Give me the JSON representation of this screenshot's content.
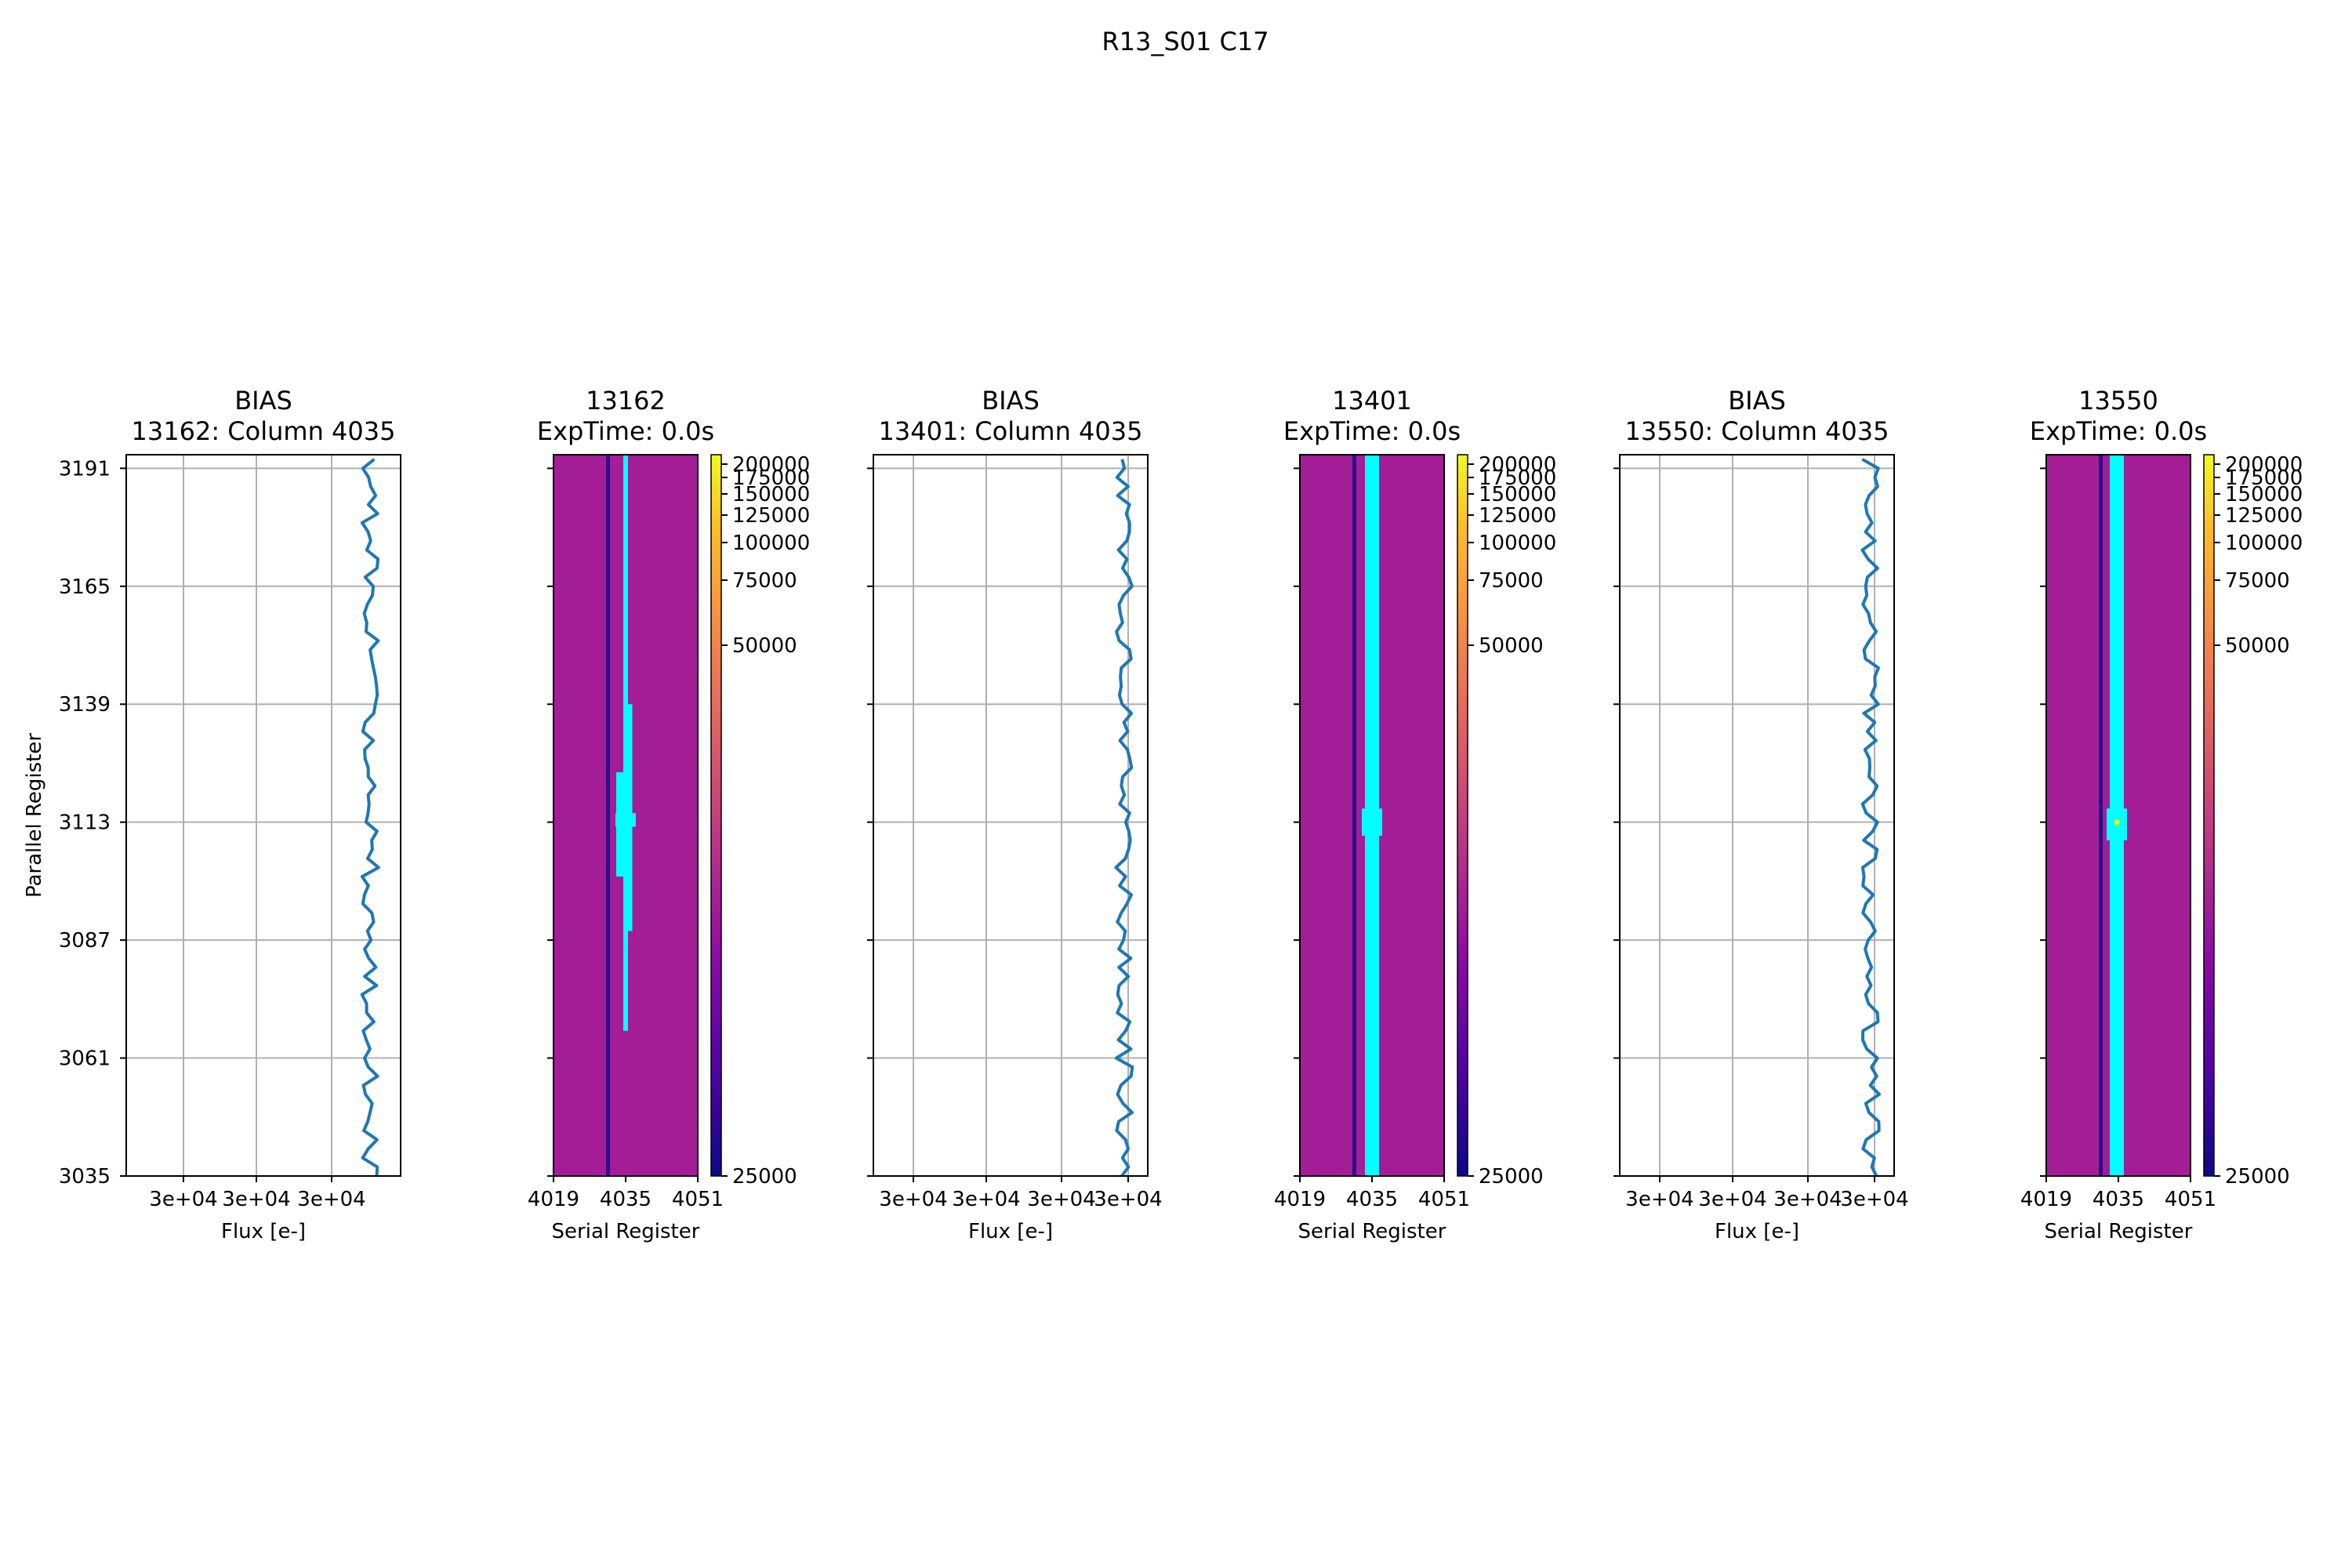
{
  "figure": {
    "suptitle": "R13_S01 C17"
  },
  "style": {
    "line_color": "#1f77b4",
    "grid_color": "#b0b0b0",
    "image_bg": "#a31e96",
    "dark_column": "#2a0f88",
    "bright_column": "#00ffff",
    "hot_pixel": "#ffff00"
  },
  "colorbar": {
    "ticks": [
      200000,
      175000,
      150000,
      125000,
      100000,
      75000,
      50000,
      25000
    ],
    "tick_labels": [
      "200000",
      "175000",
      "150000",
      "125000",
      "100000",
      "75000",
      "50000",
      "25000"
    ],
    "range": [
      25000,
      200000
    ]
  },
  "chart_data": [
    {
      "type": "line",
      "title": "BIAS\n13162: Column 4035",
      "xlabel": "Flux [e-]",
      "ylabel": "Parallel Register",
      "x_tick_labels": [
        "3e+04",
        "3e+04",
        "3e+04"
      ],
      "y_tick_labels": [
        "3191",
        "3165",
        "3139",
        "3113",
        "3087",
        "3061",
        "3035"
      ],
      "ylim": [
        3035,
        3194
      ],
      "grid": true,
      "flux_mean": 30252,
      "flux_amplitude": 3
    },
    {
      "type": "heatmap",
      "title": "13162\nExpTime: 0.0s",
      "xlabel": "Serial Register",
      "x_tick_labels": [
        "4019",
        "4035",
        "4051"
      ],
      "xlim": [
        4019,
        4051
      ],
      "ylim": [
        3035,
        3194
      ],
      "background_value": 60000,
      "features": [
        {
          "kind": "dark-column",
          "column": 4031,
          "y_range": [
            3035,
            3194
          ]
        },
        {
          "kind": "bright-column",
          "column": 4035,
          "y_range": [
            3067,
            3194
          ]
        },
        {
          "kind": "bright-column",
          "column": 4035.5,
          "y_range": [
            3089,
            3139
          ]
        },
        {
          "kind": "bright-column",
          "column": 4034.5,
          "y_range": [
            3101,
            3124
          ]
        },
        {
          "kind": "bright-column",
          "column": 4035,
          "y_range": [
            3112,
            3115
          ]
        }
      ]
    },
    {
      "type": "line",
      "title": "BIAS\n13401: Column 4035",
      "xlabel": "Flux [e-]",
      "ylabel": "",
      "x_tick_labels": [
        "3e+04",
        "3e+04",
        "3e+04",
        "3e+04"
      ],
      "ylim": [
        3035,
        3194
      ],
      "grid": true,
      "flux_mean": 30253,
      "flux_amplitude": 3
    },
    {
      "type": "heatmap",
      "title": "13401\nExpTime: 0.0s",
      "xlabel": "Serial Register",
      "x_tick_labels": [
        "4019",
        "4035",
        "4051"
      ],
      "xlim": [
        4019,
        4051
      ],
      "ylim": [
        3035,
        3194
      ],
      "background_value": 60000,
      "features": [
        {
          "kind": "dark-column",
          "column": 4031,
          "y_range": [
            3035,
            3194
          ]
        },
        {
          "kind": "bright-column",
          "column": 4035,
          "y_range": [
            3035,
            3194
          ]
        },
        {
          "kind": "bright-column",
          "column": 4035,
          "y_range": [
            3110,
            3116
          ]
        }
      ]
    },
    {
      "type": "line",
      "title": "BIAS\n13550: Column 4035",
      "xlabel": "Flux [e-]",
      "ylabel": "",
      "x_tick_labels": [
        "3e+04",
        "3e+04",
        "3e+04",
        "3e+04"
      ],
      "ylim": [
        3035,
        3194
      ],
      "grid": true,
      "flux_mean": 30251,
      "flux_amplitude": 3
    },
    {
      "type": "heatmap",
      "title": "13550\nExpTime: 0.0s",
      "xlabel": "Serial Register",
      "x_tick_labels": [
        "4019",
        "4035",
        "4051"
      ],
      "xlim": [
        4019,
        4051
      ],
      "ylim": [
        3035,
        3194
      ],
      "background_value": 60000,
      "features": [
        {
          "kind": "dark-column",
          "column": 4031,
          "y_range": [
            3035,
            3194
          ]
        },
        {
          "kind": "bright-column",
          "column": 4035,
          "y_range": [
            3035,
            3194
          ]
        },
        {
          "kind": "bright-column",
          "column": 4035,
          "y_range": [
            3109,
            3116
          ]
        },
        {
          "kind": "hot-pixel",
          "column": 4035,
          "row": 3113
        }
      ]
    }
  ]
}
